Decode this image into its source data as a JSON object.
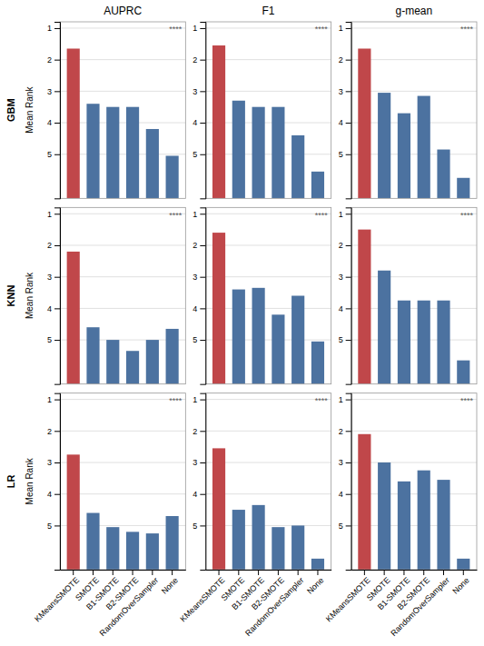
{
  "chart_data": [
    {
      "type": "bar",
      "title": "AUPRC",
      "row_label": "GBM",
      "ylabel": "Mean Rank",
      "annotations": [
        "****"
      ],
      "categories": [
        "KMeansSMOTE",
        "SMOTE",
        "B1-SMOTE",
        "B2-SMOTE",
        "RandomOverSampler",
        "None"
      ],
      "values": [
        1.65,
        3.4,
        3.5,
        3.5,
        4.2,
        5.05
      ],
      "colors": [
        "#c0474a",
        "#4c72a0",
        "#4c72a0",
        "#4c72a0",
        "#4c72a0",
        "#4c72a0"
      ],
      "ylim": [
        6.4,
        0.8
      ],
      "yticks": [
        1,
        2,
        3,
        4,
        5
      ],
      "grid": true,
      "tick_labels": "y"
    },
    {
      "type": "bar",
      "title": "F1",
      "annotations": [
        "****"
      ],
      "categories": [
        "KMeansSMOTE",
        "SMOTE",
        "B1-SMOTE",
        "B2-SMOTE",
        "RandomOverSampler",
        "None"
      ],
      "values": [
        1.55,
        3.3,
        3.5,
        3.5,
        4.4,
        5.55
      ],
      "colors": [
        "#c0474a",
        "#4c72a0",
        "#4c72a0",
        "#4c72a0",
        "#4c72a0",
        "#4c72a0"
      ],
      "ylim": [
        6.4,
        0.8
      ],
      "yticks": [
        1,
        2,
        3,
        4,
        5
      ],
      "grid": true,
      "tick_labels": "y"
    },
    {
      "type": "bar",
      "title": "g-mean",
      "annotations": [
        "****"
      ],
      "categories": [
        "KMeansSMOTE",
        "SMOTE",
        "B1-SMOTE",
        "B2-SMOTE",
        "RandomOverSampler",
        "None"
      ],
      "values": [
        1.65,
        3.05,
        3.7,
        3.15,
        4.85,
        5.75
      ],
      "colors": [
        "#c0474a",
        "#4c72a0",
        "#4c72a0",
        "#4c72a0",
        "#4c72a0",
        "#4c72a0"
      ],
      "ylim": [
        6.4,
        0.8
      ],
      "yticks": [
        1,
        2,
        3,
        4,
        5
      ],
      "grid": true,
      "tick_labels": "y"
    },
    {
      "type": "bar",
      "row_label": "KNN",
      "ylabel": "Mean Rank",
      "annotations": [
        "****"
      ],
      "categories": [
        "KMeansSMOTE",
        "SMOTE",
        "B1-SMOTE",
        "B2-SMOTE",
        "RandomOverSampler",
        "None"
      ],
      "values": [
        2.2,
        4.6,
        5.0,
        5.35,
        5.0,
        4.65
      ],
      "colors": [
        "#c0474a",
        "#4c72a0",
        "#4c72a0",
        "#4c72a0",
        "#4c72a0",
        "#4c72a0"
      ],
      "ylim": [
        6.4,
        0.8
      ],
      "yticks": [
        1,
        2,
        3,
        4,
        5
      ],
      "grid": true,
      "tick_labels": "y"
    },
    {
      "type": "bar",
      "annotations": [
        "****"
      ],
      "categories": [
        "KMeansSMOTE",
        "SMOTE",
        "B1-SMOTE",
        "B2-SMOTE",
        "RandomOverSampler",
        "None"
      ],
      "values": [
        1.6,
        3.4,
        3.35,
        4.2,
        3.6,
        5.05
      ],
      "colors": [
        "#c0474a",
        "#4c72a0",
        "#4c72a0",
        "#4c72a0",
        "#4c72a0",
        "#4c72a0"
      ],
      "ylim": [
        6.4,
        0.8
      ],
      "yticks": [
        1,
        2,
        3,
        4,
        5
      ],
      "grid": true,
      "tick_labels": "y"
    },
    {
      "type": "bar",
      "annotations": [
        "****"
      ],
      "categories": [
        "KMeansSMOTE",
        "SMOTE",
        "B1-SMOTE",
        "B2-SMOTE",
        "RandomOverSampler",
        "None"
      ],
      "values": [
        1.5,
        2.8,
        3.75,
        3.75,
        3.75,
        5.65
      ],
      "colors": [
        "#c0474a",
        "#4c72a0",
        "#4c72a0",
        "#4c72a0",
        "#4c72a0",
        "#4c72a0"
      ],
      "ylim": [
        6.4,
        0.8
      ],
      "yticks": [
        1,
        2,
        3,
        4,
        5
      ],
      "grid": true,
      "tick_labels": "y"
    },
    {
      "type": "bar",
      "row_label": "LR",
      "ylabel": "Mean Rank",
      "annotations": [
        "****"
      ],
      "categories": [
        "KMeansSMOTE",
        "SMOTE",
        "B1-SMOTE",
        "B2-SMOTE",
        "RandomOverSampler",
        "None"
      ],
      "values": [
        2.75,
        4.6,
        5.05,
        5.2,
        5.25,
        4.7
      ],
      "colors": [
        "#c0474a",
        "#4c72a0",
        "#4c72a0",
        "#4c72a0",
        "#4c72a0",
        "#4c72a0"
      ],
      "ylim": [
        6.4,
        0.8
      ],
      "yticks": [
        1,
        2,
        3,
        4,
        5
      ],
      "grid": true
    },
    {
      "type": "bar",
      "annotations": [
        "****"
      ],
      "categories": [
        "KMeansSMOTE",
        "SMOTE",
        "B1-SMOTE",
        "B2-SMOTE",
        "RandomOverSampler",
        "None"
      ],
      "values": [
        2.55,
        4.5,
        4.35,
        5.05,
        5.0,
        6.05
      ],
      "colors": [
        "#c0474a",
        "#4c72a0",
        "#4c72a0",
        "#4c72a0",
        "#4c72a0",
        "#4c72a0"
      ],
      "ylim": [
        6.4,
        0.8
      ],
      "yticks": [
        1,
        2,
        3,
        4,
        5
      ],
      "grid": true
    },
    {
      "type": "bar",
      "annotations": [
        "****"
      ],
      "categories": [
        "KMeansSMOTE",
        "SMOTE",
        "B1-SMOTE",
        "B2-SMOTE",
        "RandomOverSampler",
        "None"
      ],
      "values": [
        2.1,
        3.0,
        3.6,
        3.25,
        3.55,
        6.05
      ],
      "colors": [
        "#c0474a",
        "#4c72a0",
        "#4c72a0",
        "#4c72a0",
        "#4c72a0",
        "#4c72a0"
      ],
      "ylim": [
        6.4,
        0.8
      ],
      "yticks": [
        1,
        2,
        3,
        4,
        5
      ],
      "grid": true
    }
  ]
}
